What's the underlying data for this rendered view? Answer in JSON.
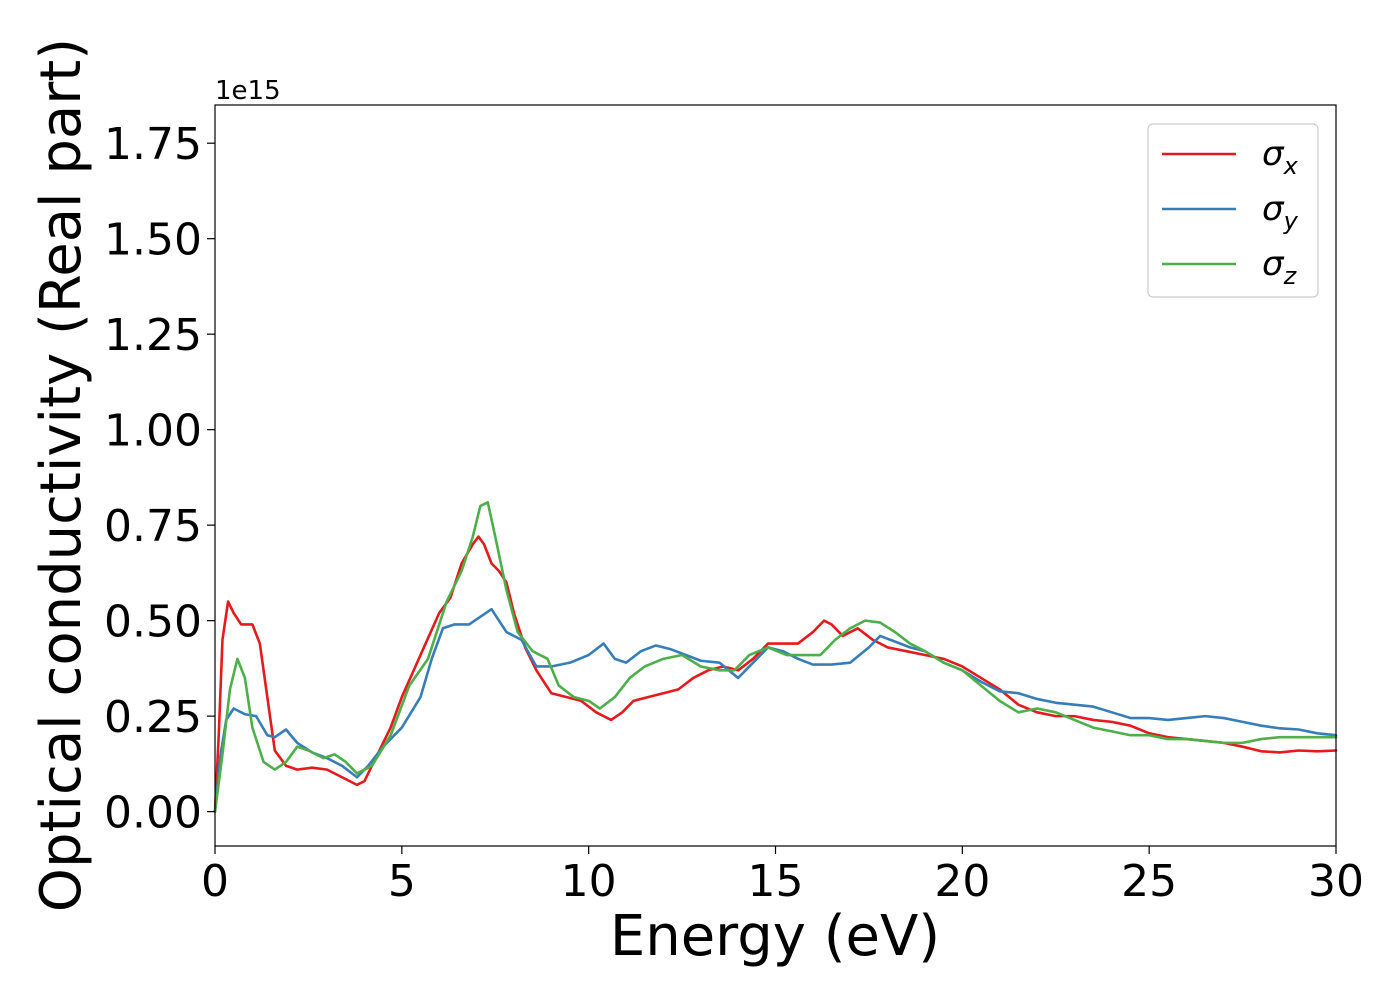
{
  "chart_data": {
    "type": "line",
    "title": "",
    "xlabel": "Energy (eV)",
    "ylabel": "Optical conductivity (Real part)",
    "y_multiplier_label": "1e15",
    "xlim": [
      0,
      30
    ],
    "ylim": [
      -0.09,
      1.85
    ],
    "x_ticks": [
      0,
      5,
      10,
      15,
      20,
      25,
      30
    ],
    "x_tick_labels": [
      "0",
      "5",
      "10",
      "15",
      "20",
      "25",
      "30"
    ],
    "y_ticks": [
      0.0,
      0.25,
      0.5,
      0.75,
      1.0,
      1.25,
      1.5,
      1.75
    ],
    "y_tick_labels": [
      "0.00",
      "0.25",
      "0.50",
      "0.75",
      "1.00",
      "1.25",
      "1.50",
      "1.75"
    ],
    "grid": false,
    "legend_position": "top-right",
    "series": [
      {
        "name": "σx",
        "legend_main": "σ",
        "legend_sub": "x",
        "color": "#e41a1c",
        "points": [
          [
            0,
            0.0
          ],
          [
            0.1,
            0.2
          ],
          [
            0.2,
            0.45
          ],
          [
            0.35,
            0.55
          ],
          [
            0.5,
            0.52
          ],
          [
            0.7,
            0.49
          ],
          [
            1.0,
            0.49
          ],
          [
            1.2,
            0.44
          ],
          [
            1.4,
            0.3
          ],
          [
            1.6,
            0.16
          ],
          [
            1.9,
            0.12
          ],
          [
            2.2,
            0.11
          ],
          [
            2.6,
            0.115
          ],
          [
            3.0,
            0.11
          ],
          [
            3.4,
            0.09
          ],
          [
            3.8,
            0.07
          ],
          [
            4.0,
            0.08
          ],
          [
            4.3,
            0.14
          ],
          [
            4.7,
            0.22
          ],
          [
            5.0,
            0.3
          ],
          [
            5.5,
            0.41
          ],
          [
            6.0,
            0.52
          ],
          [
            6.3,
            0.56
          ],
          [
            6.6,
            0.65
          ],
          [
            6.9,
            0.7
          ],
          [
            7.05,
            0.72
          ],
          [
            7.2,
            0.7
          ],
          [
            7.4,
            0.65
          ],
          [
            7.6,
            0.63
          ],
          [
            7.8,
            0.6
          ],
          [
            8.0,
            0.52
          ],
          [
            8.3,
            0.43
          ],
          [
            8.6,
            0.37
          ],
          [
            9.0,
            0.31
          ],
          [
            9.4,
            0.3
          ],
          [
            9.8,
            0.29
          ],
          [
            10.2,
            0.26
          ],
          [
            10.6,
            0.24
          ],
          [
            10.9,
            0.26
          ],
          [
            11.2,
            0.29
          ],
          [
            11.6,
            0.3
          ],
          [
            12.0,
            0.31
          ],
          [
            12.4,
            0.32
          ],
          [
            12.8,
            0.35
          ],
          [
            13.2,
            0.37
          ],
          [
            13.6,
            0.38
          ],
          [
            14.0,
            0.37
          ],
          [
            14.4,
            0.4
          ],
          [
            14.8,
            0.44
          ],
          [
            15.2,
            0.44
          ],
          [
            15.6,
            0.44
          ],
          [
            16.0,
            0.47
          ],
          [
            16.3,
            0.5
          ],
          [
            16.5,
            0.49
          ],
          [
            16.8,
            0.46
          ],
          [
            17.2,
            0.48
          ],
          [
            17.6,
            0.45
          ],
          [
            18.0,
            0.43
          ],
          [
            18.5,
            0.42
          ],
          [
            19.0,
            0.41
          ],
          [
            19.5,
            0.4
          ],
          [
            20.0,
            0.38
          ],
          [
            20.5,
            0.35
          ],
          [
            21.0,
            0.32
          ],
          [
            21.5,
            0.28
          ],
          [
            22.0,
            0.26
          ],
          [
            22.5,
            0.25
          ],
          [
            23.0,
            0.25
          ],
          [
            23.5,
            0.24
          ],
          [
            24.0,
            0.235
          ],
          [
            24.5,
            0.225
          ],
          [
            25.0,
            0.205
          ],
          [
            25.5,
            0.195
          ],
          [
            26.0,
            0.19
          ],
          [
            26.5,
            0.185
          ],
          [
            27.0,
            0.18
          ],
          [
            27.5,
            0.17
          ],
          [
            28.0,
            0.158
          ],
          [
            28.5,
            0.155
          ],
          [
            29.0,
            0.16
          ],
          [
            29.5,
            0.158
          ],
          [
            30.0,
            0.16
          ]
        ]
      },
      {
        "name": "σy",
        "legend_main": "σ",
        "legend_sub": "y",
        "color": "#377eb8",
        "points": [
          [
            0,
            0.0
          ],
          [
            0.15,
            0.15
          ],
          [
            0.3,
            0.24
          ],
          [
            0.5,
            0.27
          ],
          [
            0.8,
            0.255
          ],
          [
            1.1,
            0.25
          ],
          [
            1.4,
            0.2
          ],
          [
            1.6,
            0.195
          ],
          [
            1.9,
            0.215
          ],
          [
            2.2,
            0.18
          ],
          [
            2.6,
            0.155
          ],
          [
            3.0,
            0.14
          ],
          [
            3.4,
            0.12
          ],
          [
            3.8,
            0.09
          ],
          [
            4.1,
            0.12
          ],
          [
            4.5,
            0.17
          ],
          [
            5.0,
            0.22
          ],
          [
            5.5,
            0.3
          ],
          [
            5.8,
            0.4
          ],
          [
            6.1,
            0.48
          ],
          [
            6.4,
            0.49
          ],
          [
            6.8,
            0.49
          ],
          [
            7.1,
            0.51
          ],
          [
            7.4,
            0.53
          ],
          [
            7.6,
            0.5
          ],
          [
            7.8,
            0.47
          ],
          [
            8.2,
            0.45
          ],
          [
            8.6,
            0.38
          ],
          [
            9.0,
            0.38
          ],
          [
            9.5,
            0.39
          ],
          [
            10.0,
            0.41
          ],
          [
            10.4,
            0.44
          ],
          [
            10.7,
            0.4
          ],
          [
            11.0,
            0.39
          ],
          [
            11.4,
            0.42
          ],
          [
            11.8,
            0.435
          ],
          [
            12.2,
            0.425
          ],
          [
            12.6,
            0.41
          ],
          [
            13.0,
            0.395
          ],
          [
            13.5,
            0.39
          ],
          [
            14.0,
            0.35
          ],
          [
            14.4,
            0.39
          ],
          [
            14.8,
            0.43
          ],
          [
            15.2,
            0.42
          ],
          [
            15.6,
            0.4
          ],
          [
            16.0,
            0.385
          ],
          [
            16.5,
            0.385
          ],
          [
            17.0,
            0.39
          ],
          [
            17.5,
            0.43
          ],
          [
            17.8,
            0.46
          ],
          [
            18.2,
            0.445
          ],
          [
            18.6,
            0.43
          ],
          [
            19.0,
            0.42
          ],
          [
            19.5,
            0.39
          ],
          [
            20.0,
            0.37
          ],
          [
            20.5,
            0.34
          ],
          [
            21.0,
            0.315
          ],
          [
            21.5,
            0.31
          ],
          [
            22.0,
            0.295
          ],
          [
            22.5,
            0.285
          ],
          [
            23.0,
            0.28
          ],
          [
            23.5,
            0.275
          ],
          [
            24.0,
            0.26
          ],
          [
            24.5,
            0.245
          ],
          [
            25.0,
            0.245
          ],
          [
            25.5,
            0.24
          ],
          [
            26.0,
            0.245
          ],
          [
            26.5,
            0.25
          ],
          [
            27.0,
            0.245
          ],
          [
            27.5,
            0.235
          ],
          [
            28.0,
            0.225
          ],
          [
            28.5,
            0.218
          ],
          [
            29.0,
            0.215
          ],
          [
            29.5,
            0.205
          ],
          [
            30.0,
            0.2
          ]
        ]
      },
      {
        "name": "σz",
        "legend_main": "σ",
        "legend_sub": "z",
        "color": "#4daf4a",
        "points": [
          [
            0,
            0.0
          ],
          [
            0.2,
            0.15
          ],
          [
            0.4,
            0.32
          ],
          [
            0.6,
            0.4
          ],
          [
            0.8,
            0.35
          ],
          [
            1.0,
            0.22
          ],
          [
            1.3,
            0.13
          ],
          [
            1.6,
            0.11
          ],
          [
            1.9,
            0.13
          ],
          [
            2.2,
            0.17
          ],
          [
            2.5,
            0.16
          ],
          [
            2.9,
            0.14
          ],
          [
            3.2,
            0.15
          ],
          [
            3.5,
            0.13
          ],
          [
            3.8,
            0.1
          ],
          [
            4.2,
            0.12
          ],
          [
            4.7,
            0.2
          ],
          [
            5.2,
            0.33
          ],
          [
            5.7,
            0.4
          ],
          [
            6.2,
            0.55
          ],
          [
            6.6,
            0.63
          ],
          [
            6.9,
            0.72
          ],
          [
            7.1,
            0.8
          ],
          [
            7.3,
            0.81
          ],
          [
            7.5,
            0.72
          ],
          [
            7.8,
            0.58
          ],
          [
            8.1,
            0.47
          ],
          [
            8.5,
            0.42
          ],
          [
            8.9,
            0.4
          ],
          [
            9.2,
            0.33
          ],
          [
            9.6,
            0.3
          ],
          [
            10.0,
            0.29
          ],
          [
            10.3,
            0.27
          ],
          [
            10.7,
            0.3
          ],
          [
            11.1,
            0.35
          ],
          [
            11.5,
            0.38
          ],
          [
            12.0,
            0.4
          ],
          [
            12.5,
            0.41
          ],
          [
            13.0,
            0.38
          ],
          [
            13.5,
            0.37
          ],
          [
            13.9,
            0.37
          ],
          [
            14.3,
            0.41
          ],
          [
            14.8,
            0.43
          ],
          [
            15.3,
            0.41
          ],
          [
            15.8,
            0.41
          ],
          [
            16.2,
            0.41
          ],
          [
            16.6,
            0.45
          ],
          [
            17.0,
            0.48
          ],
          [
            17.4,
            0.5
          ],
          [
            17.8,
            0.495
          ],
          [
            18.2,
            0.47
          ],
          [
            18.6,
            0.44
          ],
          [
            19.0,
            0.42
          ],
          [
            19.5,
            0.39
          ],
          [
            20.0,
            0.37
          ],
          [
            20.5,
            0.33
          ],
          [
            21.0,
            0.29
          ],
          [
            21.5,
            0.26
          ],
          [
            22.0,
            0.27
          ],
          [
            22.5,
            0.26
          ],
          [
            23.0,
            0.24
          ],
          [
            23.5,
            0.22
          ],
          [
            24.0,
            0.21
          ],
          [
            24.5,
            0.2
          ],
          [
            25.0,
            0.2
          ],
          [
            25.5,
            0.19
          ],
          [
            26.0,
            0.19
          ],
          [
            26.5,
            0.185
          ],
          [
            27.0,
            0.18
          ],
          [
            27.5,
            0.18
          ],
          [
            28.0,
            0.19
          ],
          [
            28.5,
            0.195
          ],
          [
            29.0,
            0.195
          ],
          [
            29.5,
            0.195
          ],
          [
            30.0,
            0.195
          ]
        ]
      }
    ]
  }
}
